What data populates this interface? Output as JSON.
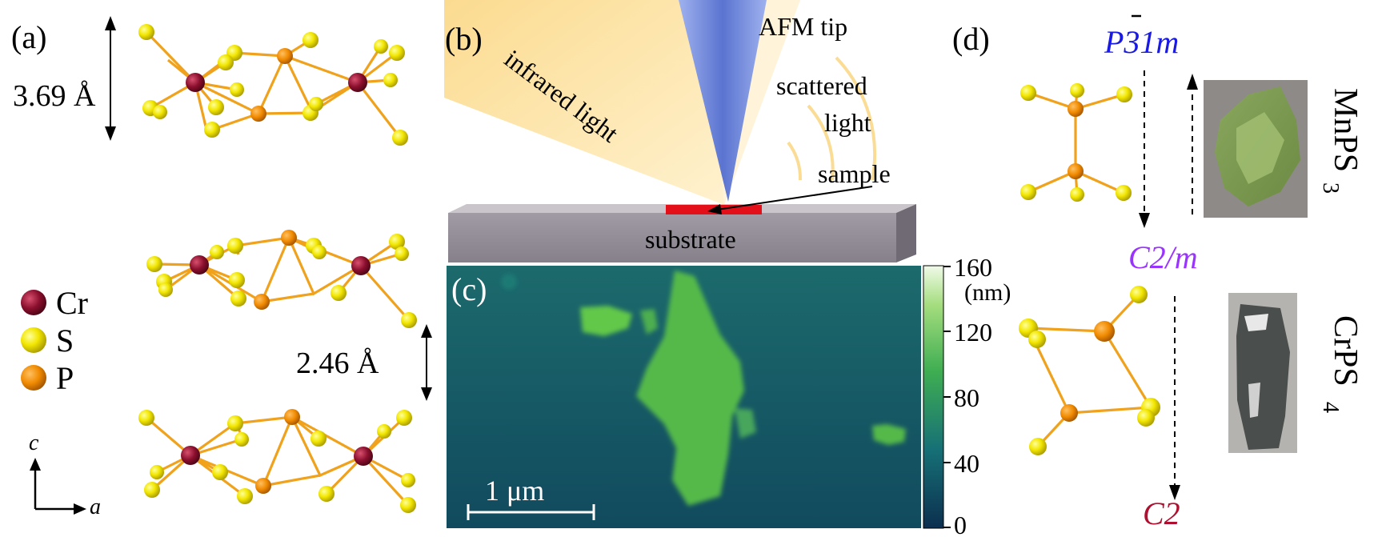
{
  "panel_a": {
    "label": "(a)",
    "dim_top": "3.69 Å",
    "dim_mid": "2.46 Å",
    "legend": [
      {
        "name": "Cr",
        "color": "#8b0f2e"
      },
      {
        "name": "S",
        "color": "#f2e600"
      },
      {
        "name": "P",
        "color": "#f08a00"
      }
    ],
    "axis_c": "c",
    "axis_a": "a"
  },
  "panel_b": {
    "label": "(b)",
    "infrared": "infrared light",
    "afm": "AFM tip",
    "scattered_1": "scattered",
    "scattered_2": "light",
    "sample": "sample",
    "substrate": "substrate"
  },
  "panel_c": {
    "label": "(c)",
    "scalebar": "1 μm",
    "unit": "(nm)",
    "colorbar_ticks": [
      "160",
      "120",
      "80",
      "40",
      "0"
    ]
  },
  "panel_d": {
    "label": "(d)",
    "phase_top": "P31m",
    "phase_mid": "C2/m",
    "phase_bottom": "C2",
    "mnps3": "MnPS",
    "mnps3_sub": "3",
    "crps4": "CrPS",
    "crps4_sub": "4"
  },
  "colors": {
    "bond": "#f0a21c",
    "cr": "#8b0f2e",
    "s": "#f2e600",
    "p": "#f08a00",
    "blue_phase": "#1a1ae6",
    "violet_phase": "#9a33ff",
    "red_phase": "#b01030",
    "afm_tip": "#6d86d8"
  }
}
